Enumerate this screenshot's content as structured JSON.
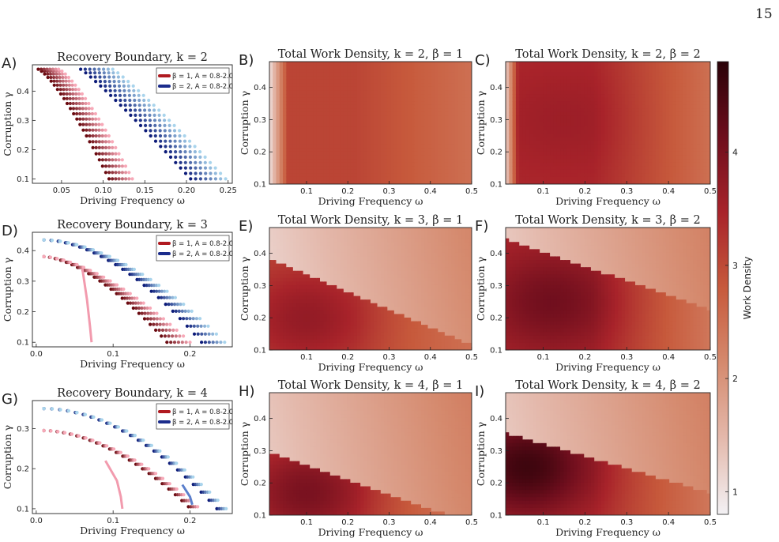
{
  "page_number": "15",
  "colorbar": {
    "label": "Work Density",
    "ticks": [
      "1",
      "2",
      "3",
      "4"
    ],
    "min": 0.8,
    "max": 4.8,
    "colors": [
      "#f3f1f4",
      "#e4b9ac",
      "#d58a6e",
      "#c75a3c",
      "#a8232a",
      "#6e0e1d",
      "#2a0208"
    ]
  },
  "chart_data": [
    {
      "id": "A",
      "letter": "A)",
      "type": "scatter",
      "title": "Recovery Boundary,  k = 2",
      "xlabel": "Driving Frequency ω",
      "ylabel": "Corruption γ",
      "xlim": [
        0.015,
        0.255
      ],
      "ylim": [
        0.085,
        0.49
      ],
      "xticks": [
        0.05,
        0.1,
        0.15,
        0.2,
        0.25
      ],
      "xtick_labels": [
        "0.05",
        "0.10",
        "0.15",
        "0.20",
        "0.25"
      ],
      "yticks": [
        0.1,
        0.2,
        0.3,
        0.4
      ],
      "ytick_labels": [
        "0.1",
        "0.2",
        "0.3",
        "0.4"
      ],
      "legend": [
        {
          "label": "β = 1, A = 0.8-2.0",
          "color": "#b01a20"
        },
        {
          "label": "β = 2, A = 0.8-2.0",
          "color": "#1b2c8c"
        }
      ],
      "series": [
        {
          "group": 1,
          "count": 8,
          "x_start": 0.022,
          "x_step": 0.0035,
          "y_top": 0.475,
          "x_end": 0.107,
          "x_end_step": 0.004,
          "y_end": 0.1,
          "shape": 1.3
        },
        {
          "group": 2,
          "count": 8,
          "x_start": 0.073,
          "x_step": 0.0055,
          "y_top": 0.475,
          "x_end": 0.205,
          "x_end_step": 0.006,
          "y_end": 0.1,
          "shape": 1.1
        }
      ]
    },
    {
      "id": "D",
      "letter": "D)",
      "type": "scatter",
      "title": "Recovery Boundary,  k = 3",
      "xlabel": "Driving Frequency ω",
      "ylabel": "Corruption γ",
      "xlim": [
        -0.005,
        0.255
      ],
      "ylim": [
        0.085,
        0.46
      ],
      "xticks": [
        0,
        0.1,
        0.2
      ],
      "xtick_labels": [
        "0.0",
        "0.1",
        "0.2"
      ],
      "yticks": [
        0.1,
        0.2,
        0.3,
        0.4
      ],
      "ytick_labels": [
        "0.1",
        "0.2",
        "0.3",
        "0.4"
      ],
      "legend": [
        {
          "label": "β = 1, A = 0.8-2.0",
          "color": "#b01a20"
        },
        {
          "label": "β = 2, A = 0.8-2.0",
          "color": "#1b2c8c"
        }
      ],
      "series": [
        {
          "group": 1,
          "count": 7,
          "x_start": 0.01,
          "y_top": 0.38,
          "x_end": 0.17,
          "x_end_step": 0.005,
          "y_end": 0.1,
          "shape": 1.6,
          "outlier": [
            [
              0.06,
              0.34
            ],
            [
              0.066,
              0.24
            ],
            [
              0.07,
              0.15
            ],
            [
              0.072,
              0.1
            ]
          ]
        },
        {
          "group": 2,
          "count": 7,
          "x_start": 0.01,
          "y_top": 0.435,
          "x_end": 0.215,
          "x_end_step": 0.005,
          "y_end": 0.1,
          "shape": 1.8
        }
      ]
    },
    {
      "id": "G",
      "letter": "G)",
      "type": "scatter",
      "title": "Recovery Boundary,  k = 4",
      "xlabel": "Driving Frequency ω",
      "ylabel": "Corruption γ",
      "xlim": [
        -0.005,
        0.255
      ],
      "ylim": [
        0.088,
        0.37
      ],
      "xticks": [
        0,
        0.1,
        0.2
      ],
      "xtick_labels": [
        "0.0",
        "0.1",
        "0.2"
      ],
      "yticks": [
        0.1,
        0.2,
        0.3
      ],
      "ytick_labels": [
        "0.1",
        "0.2",
        "0.3"
      ],
      "legend": [
        {
          "label": "β = 1, A = 0.8-2.0",
          "color": "#b01a20"
        },
        {
          "label": "β = 2, A = 0.8-2.0",
          "color": "#1b2c8c"
        }
      ],
      "series": [
        {
          "group": 1,
          "count": 5,
          "x_start": 0.01,
          "y_top": 0.295,
          "x_end": 0.198,
          "x_end_step": 0.003,
          "y_end": 0.105,
          "shape": 1.8,
          "outlier": [
            [
              0.09,
              0.22
            ],
            [
              0.105,
              0.17
            ],
            [
              0.11,
              0.13
            ],
            [
              0.112,
              0.1
            ]
          ]
        },
        {
          "group": 2,
          "count": 5,
          "x_start": 0.01,
          "y_top": 0.35,
          "x_end": 0.235,
          "x_end_step": 0.003,
          "y_end": 0.1,
          "shape": 1.9,
          "outlier": [
            [
              0.19,
              0.16
            ],
            [
              0.2,
              0.13
            ],
            [
              0.203,
              0.11
            ]
          ]
        }
      ]
    },
    {
      "id": "B",
      "letter": "B)",
      "type": "heatmap",
      "title": "Total Work Density,  k = 2,  β = 1",
      "xlabel": "Driving Frequency ω",
      "ylabel": "Corruption γ",
      "xlim": [
        0.01,
        0.5
      ],
      "ylim": [
        0.1,
        0.48
      ],
      "xticks": [
        0.1,
        0.2,
        0.3,
        0.4,
        0.5
      ],
      "xtick_labels": [
        "0.1",
        "0.2",
        "0.3",
        "0.4",
        "0.5"
      ],
      "yticks": [
        0.1,
        0.2,
        0.3,
        0.4
      ],
      "ytick_labels": [
        "0.1",
        "0.2",
        "0.3",
        "0.4"
      ],
      "boundary": {
        "x0": 0.01,
        "y0": 1.0,
        "slope": 0.0,
        "edge_x": 0.045
      },
      "values": {
        "low": 1.0,
        "base": 3.05,
        "peak": 3.05,
        "peak_x": 0.2,
        "peak_y": 0.3,
        "far": 2.5
      }
    },
    {
      "id": "C",
      "letter": "C)",
      "type": "heatmap",
      "title": "Total Work Density,  k = 2,  β = 2",
      "xlabel": "Driving Frequency ω",
      "ylabel": "Corruption γ",
      "xlim": [
        0.01,
        0.5
      ],
      "ylim": [
        0.1,
        0.48
      ],
      "xticks": [
        0.1,
        0.2,
        0.3,
        0.4,
        0.5
      ],
      "xtick_labels": [
        "0.1",
        "0.2",
        "0.3",
        "0.4",
        "0.5"
      ],
      "yticks": [
        0.1,
        0.2,
        0.3,
        0.4
      ],
      "ytick_labels": [
        "0.1",
        "0.2",
        "0.3",
        "0.4"
      ],
      "boundary": {
        "x0": 0.01,
        "y0": 1.0,
        "slope": 0.0,
        "edge_x": 0.03
      },
      "values": {
        "low": 1.2,
        "base": 3.4,
        "peak": 3.6,
        "peak_x": 0.15,
        "peak_y": 0.3,
        "far": 2.5
      }
    },
    {
      "id": "E",
      "letter": "E)",
      "type": "heatmap",
      "title": "Total Work Density,  k = 3,  β = 1",
      "xlabel": "Driving Frequency ω",
      "ylabel": "Corruption γ",
      "xlim": [
        0.01,
        0.5
      ],
      "ylim": [
        0.1,
        0.48
      ],
      "xticks": [
        0.1,
        0.2,
        0.3,
        0.4,
        0.5
      ],
      "xtick_labels": [
        "0.1",
        "0.2",
        "0.3",
        "0.4",
        "0.5"
      ],
      "yticks": [
        0.1,
        0.2,
        0.3,
        0.4
      ],
      "ytick_labels": [
        "0.1",
        "0.2",
        "0.3",
        "0.4"
      ],
      "boundary": {
        "x0": 0.01,
        "y0": 0.385,
        "slope": -0.55,
        "edge_x": 0.0
      },
      "values": {
        "low": 1.2,
        "base": 3.0,
        "peak": 3.7,
        "peak_x": 0.1,
        "peak_y": 0.2,
        "far": 2.5
      }
    },
    {
      "id": "F",
      "letter": "F)",
      "type": "heatmap",
      "title": "Total Work Density,  k = 3,  β = 2",
      "xlabel": "Driving Frequency ω",
      "ylabel": "Corruption γ",
      "xlim": [
        0.01,
        0.5
      ],
      "ylim": [
        0.1,
        0.48
      ],
      "xticks": [
        0.1,
        0.2,
        0.3,
        0.4,
        0.5
      ],
      "xtick_labels": [
        "0.1",
        "0.2",
        "0.3",
        "0.4",
        "0.5"
      ],
      "yticks": [
        0.1,
        0.2,
        0.3,
        0.4
      ],
      "ytick_labels": [
        "0.1",
        "0.2",
        "0.3",
        "0.4"
      ],
      "boundary": {
        "x0": 0.01,
        "y0": 0.445,
        "slope": -0.45,
        "edge_x": 0.0
      },
      "values": {
        "low": 1.3,
        "base": 3.4,
        "peak": 4.1,
        "peak_x": 0.12,
        "peak_y": 0.25,
        "far": 2.4
      }
    },
    {
      "id": "H",
      "letter": "H)",
      "type": "heatmap",
      "title": "Total Work Density,  k = 4,  β = 1",
      "xlabel": "Driving Frequency ω",
      "ylabel": "Corruption γ",
      "xlim": [
        0.01,
        0.5
      ],
      "ylim": [
        0.1,
        0.48
      ],
      "xticks": [
        0.1,
        0.2,
        0.3,
        0.4,
        0.5
      ],
      "xtick_labels": [
        "0.1",
        "0.2",
        "0.3",
        "0.4",
        "0.5"
      ],
      "yticks": [
        0.1,
        0.2,
        0.3,
        0.4
      ],
      "ytick_labels": [
        "0.1",
        "0.2",
        "0.3",
        "0.4"
      ],
      "boundary": {
        "x0": 0.01,
        "y0": 0.295,
        "slope": -0.45,
        "edge_x": 0.0
      },
      "values": {
        "low": 1.3,
        "base": 3.0,
        "peak": 4.0,
        "peak_x": 0.1,
        "peak_y": 0.17,
        "far": 2.4
      }
    },
    {
      "id": "I",
      "letter": "I)",
      "type": "heatmap",
      "title": "Total Work Density,  k = 4,  β = 2",
      "xlabel": "Driving Frequency ω",
      "ylabel": "Corruption γ",
      "xlim": [
        0.01,
        0.5
      ],
      "ylim": [
        0.1,
        0.48
      ],
      "xticks": [
        0.1,
        0.2,
        0.3,
        0.4,
        0.5
      ],
      "xtick_labels": [
        "0.1",
        "0.2",
        "0.3",
        "0.4",
        "0.5"
      ],
      "yticks": [
        0.1,
        0.2,
        0.3,
        0.4
      ],
      "ytick_labels": [
        "0.1",
        "0.2",
        "0.3",
        "0.4"
      ],
      "boundary": {
        "x0": 0.01,
        "y0": 0.355,
        "slope": -0.38,
        "edge_x": 0.0
      },
      "values": {
        "low": 1.3,
        "base": 3.3,
        "peak": 4.6,
        "peak_x": 0.06,
        "peak_y": 0.25,
        "far": 2.4
      }
    }
  ]
}
